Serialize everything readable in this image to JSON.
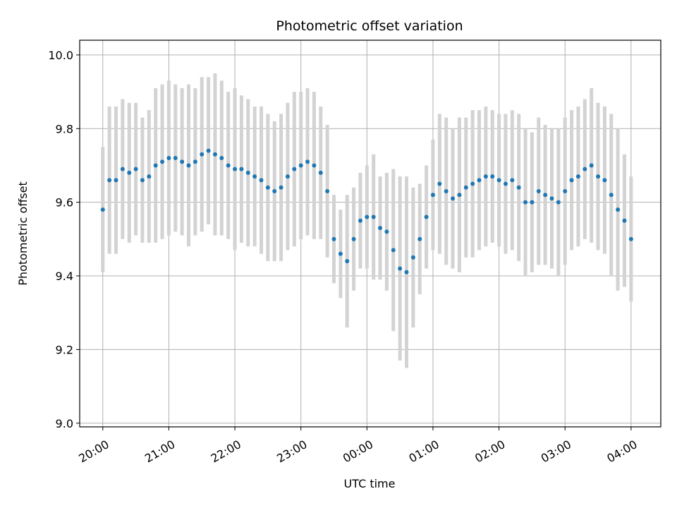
{
  "chart_data": {
    "type": "scatter",
    "title": "Photometric offset variation",
    "xlabel": "UTC time",
    "ylabel": "Photometric offset",
    "x_ticks": [
      "20:00",
      "21:00",
      "22:00",
      "23:00",
      "00:00",
      "01:00",
      "02:00",
      "03:00",
      "04:00"
    ],
    "x_unit": "hours since 20:00 UTC",
    "xlim": [
      -0.35,
      8.45
    ],
    "ylim": [
      8.99,
      10.04
    ],
    "y_ticks": [
      9.0,
      9.2,
      9.4,
      9.6,
      9.8,
      10.0
    ],
    "y_tick_labels": [
      "9.0",
      "9.2",
      "9.4",
      "9.6",
      "9.8",
      "10.0"
    ],
    "grid": true,
    "point_color": "#1f77b4",
    "errorbar_color": "#d3d3d3",
    "series": [
      {
        "x": [
          0.0,
          0.1,
          0.2,
          0.3,
          0.4,
          0.5,
          0.6,
          0.7,
          0.8,
          0.9,
          1.0,
          1.1,
          1.2,
          1.3,
          1.4,
          1.5,
          1.6,
          1.7,
          1.8,
          1.9,
          2.0,
          2.1,
          2.2,
          2.3,
          2.4,
          2.5,
          2.6,
          2.7,
          2.8,
          2.9,
          3.0,
          3.1,
          3.2,
          3.3,
          3.4,
          3.5,
          3.6,
          3.7,
          3.8,
          3.9,
          4.0,
          4.1,
          4.2,
          4.3,
          4.4,
          4.5,
          4.6,
          4.7,
          4.8,
          4.9,
          5.0,
          5.1,
          5.2,
          5.3,
          5.4,
          5.5,
          5.6,
          5.7,
          5.8,
          5.9,
          6.0,
          6.1,
          6.2,
          6.3,
          6.4,
          6.5,
          6.6,
          6.7,
          6.8,
          6.9,
          7.0,
          7.1,
          7.2,
          7.3,
          7.4,
          7.5,
          7.6,
          7.7,
          7.8,
          7.9,
          8.0
        ],
        "y": [
          9.58,
          9.66,
          9.66,
          9.69,
          9.68,
          9.69,
          9.66,
          9.67,
          9.7,
          9.71,
          9.72,
          9.72,
          9.71,
          9.7,
          9.71,
          9.73,
          9.74,
          9.73,
          9.72,
          9.7,
          9.69,
          9.69,
          9.68,
          9.67,
          9.66,
          9.64,
          9.63,
          9.64,
          9.67,
          9.69,
          9.7,
          9.71,
          9.7,
          9.68,
          9.63,
          9.5,
          9.46,
          9.44,
          9.5,
          9.55,
          9.56,
          9.56,
          9.53,
          9.52,
          9.47,
          9.42,
          9.41,
          9.45,
          9.5,
          9.56,
          9.62,
          9.65,
          9.63,
          9.61,
          9.62,
          9.64,
          9.65,
          9.66,
          9.67,
          9.67,
          9.66,
          9.65,
          9.66,
          9.64,
          9.6,
          9.6,
          9.63,
          9.62,
          9.61,
          9.6,
          9.63,
          9.66,
          9.67,
          9.69,
          9.7,
          9.67,
          9.66,
          9.62,
          9.58,
          9.55,
          9.5
        ],
        "yerr": [
          0.17,
          0.2,
          0.2,
          0.19,
          0.19,
          0.18,
          0.17,
          0.18,
          0.21,
          0.21,
          0.21,
          0.2,
          0.2,
          0.22,
          0.2,
          0.21,
          0.2,
          0.22,
          0.21,
          0.2,
          0.22,
          0.2,
          0.2,
          0.19,
          0.2,
          0.2,
          0.19,
          0.2,
          0.2,
          0.21,
          0.2,
          0.2,
          0.2,
          0.18,
          0.18,
          0.12,
          0.12,
          0.18,
          0.14,
          0.13,
          0.14,
          0.17,
          0.14,
          0.16,
          0.22,
          0.25,
          0.26,
          0.19,
          0.15,
          0.14,
          0.15,
          0.19,
          0.2,
          0.19,
          0.21,
          0.19,
          0.2,
          0.19,
          0.19,
          0.18,
          0.18,
          0.19,
          0.19,
          0.2,
          0.2,
          0.19,
          0.2,
          0.19,
          0.19,
          0.2,
          0.2,
          0.19,
          0.19,
          0.19,
          0.21,
          0.2,
          0.2,
          0.22,
          0.22,
          0.18,
          0.17
        ]
      }
    ]
  }
}
